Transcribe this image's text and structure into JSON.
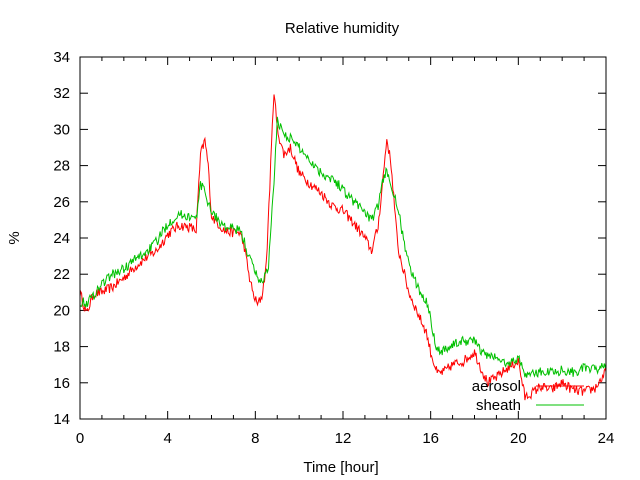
{
  "chart_data": {
    "type": "line",
    "title": "Relative humidity",
    "xlabel": "Time [hour]",
    "ylabel": "%",
    "xlim": [
      0,
      24
    ],
    "ylim": [
      14,
      34
    ],
    "xticks": [
      0,
      4,
      8,
      12,
      16,
      20,
      24
    ],
    "yticks": [
      14,
      16,
      18,
      20,
      22,
      24,
      26,
      28,
      30,
      32,
      34
    ],
    "grid": false,
    "legend_position": "bottom-right",
    "series": [
      {
        "name": "aerosol",
        "color": "#ff0000",
        "points": [
          [
            0,
            21.0
          ],
          [
            0.3,
            19.8
          ],
          [
            0.6,
            20.9
          ],
          [
            1.0,
            21.0
          ],
          [
            1.5,
            21.3
          ],
          [
            2.0,
            21.8
          ],
          [
            2.5,
            22.4
          ],
          [
            3.0,
            22.9
          ],
          [
            3.5,
            23.3
          ],
          [
            4.0,
            24.2
          ],
          [
            4.5,
            24.7
          ],
          [
            5.0,
            24.6
          ],
          [
            5.3,
            24.4
          ],
          [
            5.5,
            28.6
          ],
          [
            5.7,
            29.4
          ],
          [
            5.85,
            28.0
          ],
          [
            6.0,
            25.2
          ],
          [
            6.3,
            24.8
          ],
          [
            6.6,
            24.4
          ],
          [
            7.0,
            24.3
          ],
          [
            7.3,
            24.3
          ],
          [
            7.5,
            23.5
          ],
          [
            7.7,
            22.0
          ],
          [
            7.9,
            20.9
          ],
          [
            8.1,
            20.3
          ],
          [
            8.3,
            20.8
          ],
          [
            8.5,
            22.5
          ],
          [
            8.7,
            28.0
          ],
          [
            8.85,
            32.2
          ],
          [
            9.0,
            30.0
          ],
          [
            9.3,
            28.6
          ],
          [
            9.6,
            29.0
          ],
          [
            10.0,
            27.6
          ],
          [
            10.5,
            27.0
          ],
          [
            11.0,
            26.5
          ],
          [
            11.5,
            25.8
          ],
          [
            12.0,
            25.5
          ],
          [
            12.5,
            24.8
          ],
          [
            13.0,
            24.0
          ],
          [
            13.3,
            23.3
          ],
          [
            13.6,
            24.6
          ],
          [
            13.8,
            27.0
          ],
          [
            14.0,
            29.5
          ],
          [
            14.2,
            28.0
          ],
          [
            14.5,
            23.5
          ],
          [
            14.8,
            22.0
          ],
          [
            15.0,
            21.0
          ],
          [
            15.5,
            19.6
          ],
          [
            15.8,
            18.8
          ],
          [
            16.0,
            17.7
          ],
          [
            16.3,
            16.5
          ],
          [
            16.6,
            16.6
          ],
          [
            17.0,
            17.0
          ],
          [
            17.5,
            17.2
          ],
          [
            18.0,
            17.7
          ],
          [
            18.3,
            16.8
          ],
          [
            18.6,
            16.0
          ],
          [
            19.0,
            16.3
          ],
          [
            19.5,
            16.8
          ],
          [
            20.0,
            17.2
          ],
          [
            20.3,
            15.2
          ],
          [
            20.7,
            15.5
          ],
          [
            21.0,
            15.8
          ],
          [
            21.5,
            15.6
          ],
          [
            22.0,
            16.0
          ],
          [
            22.5,
            15.6
          ],
          [
            23.0,
            15.5
          ],
          [
            23.5,
            15.7
          ],
          [
            24.0,
            16.6
          ]
        ]
      },
      {
        "name": "sheath",
        "color": "#00c000",
        "points": [
          [
            0,
            20.5
          ],
          [
            0.3,
            20.4
          ],
          [
            0.6,
            20.8
          ],
          [
            1.0,
            21.5
          ],
          [
            1.5,
            22.0
          ],
          [
            2.0,
            22.3
          ],
          [
            2.5,
            22.8
          ],
          [
            3.0,
            23.2
          ],
          [
            3.5,
            23.8
          ],
          [
            4.0,
            24.8
          ],
          [
            4.5,
            25.3
          ],
          [
            5.0,
            25.2
          ],
          [
            5.3,
            25.0
          ],
          [
            5.5,
            27.0
          ],
          [
            5.7,
            26.5
          ],
          [
            6.0,
            25.5
          ],
          [
            6.3,
            25.0
          ],
          [
            6.6,
            24.6
          ],
          [
            7.0,
            24.5
          ],
          [
            7.3,
            24.4
          ],
          [
            7.5,
            23.8
          ],
          [
            7.7,
            23.0
          ],
          [
            8.0,
            22.1
          ],
          [
            8.3,
            21.5
          ],
          [
            8.6,
            22.5
          ],
          [
            8.85,
            27.0
          ],
          [
            9.0,
            30.5
          ],
          [
            9.3,
            29.8
          ],
          [
            9.6,
            29.5
          ],
          [
            10.0,
            29.0
          ],
          [
            10.5,
            28.3
          ],
          [
            11.0,
            27.6
          ],
          [
            11.5,
            27.3
          ],
          [
            12.0,
            26.7
          ],
          [
            12.5,
            26.0
          ],
          [
            13.0,
            25.5
          ],
          [
            13.3,
            24.9
          ],
          [
            13.6,
            25.8
          ],
          [
            13.8,
            27.0
          ],
          [
            14.0,
            27.8
          ],
          [
            14.3,
            26.5
          ],
          [
            14.6,
            25.0
          ],
          [
            15.0,
            22.5
          ],
          [
            15.5,
            21.0
          ],
          [
            15.8,
            20.6
          ],
          [
            16.0,
            19.5
          ],
          [
            16.3,
            17.8
          ],
          [
            16.6,
            17.8
          ],
          [
            17.0,
            18.1
          ],
          [
            17.5,
            18.3
          ],
          [
            18.0,
            18.4
          ],
          [
            18.3,
            17.7
          ],
          [
            18.6,
            17.5
          ],
          [
            19.0,
            17.4
          ],
          [
            19.5,
            17.0
          ],
          [
            20.0,
            17.4
          ],
          [
            20.3,
            16.5
          ],
          [
            20.7,
            16.5
          ],
          [
            21.0,
            16.6
          ],
          [
            21.5,
            16.6
          ],
          [
            22.0,
            16.7
          ],
          [
            22.5,
            16.6
          ],
          [
            23.0,
            16.8
          ],
          [
            23.5,
            16.7
          ],
          [
            24.0,
            17.1
          ]
        ]
      }
    ]
  }
}
